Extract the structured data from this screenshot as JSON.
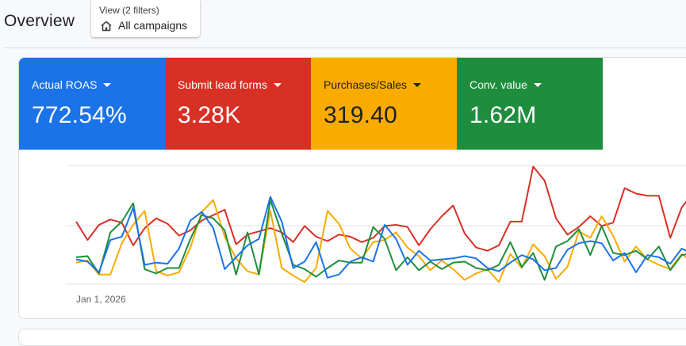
{
  "header": {
    "title": "Overview",
    "view_label": "View (2 filters)",
    "view_value": "All campaigns",
    "view_icon": "home-icon"
  },
  "tiles": [
    {
      "label": "Actual ROAS",
      "value": "772.54%",
      "color": "#1a73e8"
    },
    {
      "label": "Submit lead forms",
      "value": "3.28K",
      "color": "#d93025"
    },
    {
      "label": "Purchases/Sales",
      "value": "319.40",
      "color": "#f9ab00"
    },
    {
      "label": "Conv. value",
      "value": "1.62M",
      "color": "#1e8e3e"
    }
  ],
  "chart_data": {
    "type": "line",
    "x_start_label": "Jan 1, 2026",
    "grid": true,
    "series": [
      {
        "color": "#d93025",
        "values": [
          58,
          41,
          55,
          60,
          57,
          36,
          52,
          61,
          56,
          45,
          50,
          59,
          64,
          69,
          37,
          46,
          49,
          52,
          48,
          39,
          54,
          44,
          40,
          46,
          44,
          39,
          43,
          54,
          55,
          53,
          36,
          51,
          63,
          73,
          47,
          34,
          31,
          36,
          58,
          58,
          109,
          96,
          61,
          46,
          53,
          63,
          54,
          57,
          89,
          84,
          82,
          82,
          43,
          71,
          85
        ]
      },
      {
        "color": "#f9ab00",
        "values": [
          20,
          22,
          9,
          9,
          38,
          55,
          68,
          12,
          8,
          11,
          34,
          67,
          78,
          44,
          24,
          12,
          9,
          68,
          15,
          8,
          2,
          15,
          68,
          56,
          33,
          24,
          39,
          41,
          48,
          34,
          26,
          13,
          22,
          14,
          4,
          10,
          14,
          2,
          28,
          15,
          37,
          26,
          5,
          16,
          49,
          43,
          63,
          45,
          21,
          35,
          23,
          18,
          14,
          28,
          20
        ]
      },
      {
        "color": "#1e8e3e",
        "values": [
          25,
          26,
          10,
          48,
          58,
          75,
          14,
          10,
          15,
          15,
          42,
          64,
          61,
          50,
          9,
          48,
          9,
          78,
          47,
          18,
          14,
          7,
          15,
          22,
          20,
          20,
          53,
          42,
          13,
          25,
          13,
          21,
          14,
          20,
          21,
          15,
          13,
          18,
          39,
          16,
          29,
          4,
          35,
          40,
          51,
          27,
          54,
          29,
          27,
          31,
          23,
          35,
          13,
          27,
          29
        ]
      },
      {
        "color": "#1a73e8",
        "values": [
          23,
          21,
          11,
          41,
          44,
          71,
          18,
          20,
          19,
          33,
          59,
          67,
          52,
          14,
          25,
          36,
          42,
          81,
          58,
          15,
          21,
          39,
          6,
          9,
          21,
          25,
          21,
          55,
          42,
          18,
          31,
          22,
          23,
          24,
          26,
          24,
          15,
          12,
          20,
          27,
          23,
          13,
          15,
          32,
          38,
          40,
          38,
          22,
          29,
          11,
          27,
          25,
          19,
          33,
          28
        ]
      }
    ]
  }
}
